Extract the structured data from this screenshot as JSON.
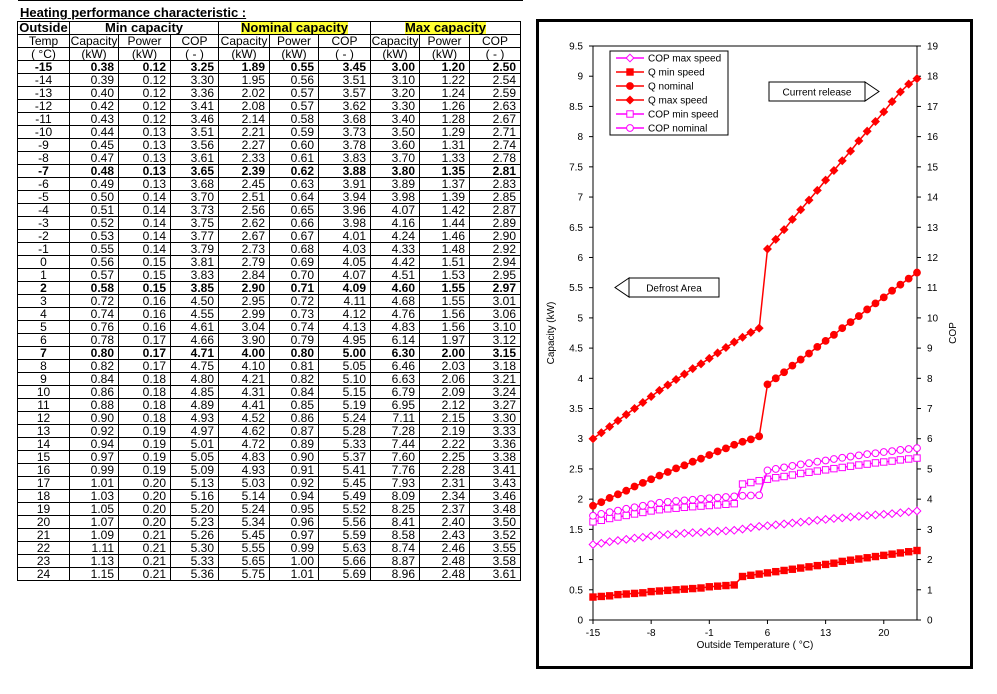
{
  "title": "Heating performance characteristic :",
  "table": {
    "groups": [
      "Outside",
      "Min capacity",
      "Nominal capacity",
      "Max capacity"
    ],
    "headers": [
      "Temp",
      "Capacity",
      "Power",
      "COP",
      "Capacity",
      "Power",
      "COP",
      "Capacity",
      "Power",
      "COP"
    ],
    "units": [
      "( °C)",
      "(kW)",
      "(kW)",
      "( - )",
      "(kW)",
      "(kW)",
      "( - )",
      "(kW)",
      "(kW)",
      "( - )"
    ],
    "bold_temps": [
      "-15",
      "-7",
      "2",
      "7"
    ],
    "rows": [
      [
        "-15",
        "0.38",
        "0.12",
        "3.25",
        "1.89",
        "0.55",
        "3.45",
        "3.00",
        "1.20",
        "2.50"
      ],
      [
        "-14",
        "0.39",
        "0.12",
        "3.30",
        "1.95",
        "0.56",
        "3.51",
        "3.10",
        "1.22",
        "2.54"
      ],
      [
        "-13",
        "0.40",
        "0.12",
        "3.36",
        "2.02",
        "0.57",
        "3.57",
        "3.20",
        "1.24",
        "2.59"
      ],
      [
        "-12",
        "0.42",
        "0.12",
        "3.41",
        "2.08",
        "0.57",
        "3.62",
        "3.30",
        "1.26",
        "2.63"
      ],
      [
        "-11",
        "0.43",
        "0.12",
        "3.46",
        "2.14",
        "0.58",
        "3.68",
        "3.40",
        "1.28",
        "2.67"
      ],
      [
        "-10",
        "0.44",
        "0.13",
        "3.51",
        "2.21",
        "0.59",
        "3.73",
        "3.50",
        "1.29",
        "2.71"
      ],
      [
        "-9",
        "0.45",
        "0.13",
        "3.56",
        "2.27",
        "0.60",
        "3.78",
        "3.60",
        "1.31",
        "2.74"
      ],
      [
        "-8",
        "0.47",
        "0.13",
        "3.61",
        "2.33",
        "0.61",
        "3.83",
        "3.70",
        "1.33",
        "2.78"
      ],
      [
        "-7",
        "0.48",
        "0.13",
        "3.65",
        "2.39",
        "0.62",
        "3.88",
        "3.80",
        "1.35",
        "2.81"
      ],
      [
        "-6",
        "0.49",
        "0.13",
        "3.68",
        "2.45",
        "0.63",
        "3.91",
        "3.89",
        "1.37",
        "2.83"
      ],
      [
        "-5",
        "0.50",
        "0.14",
        "3.70",
        "2.51",
        "0.64",
        "3.94",
        "3.98",
        "1.39",
        "2.85"
      ],
      [
        "-4",
        "0.51",
        "0.14",
        "3.73",
        "2.56",
        "0.65",
        "3.96",
        "4.07",
        "1.42",
        "2.87"
      ],
      [
        "-3",
        "0.52",
        "0.14",
        "3.75",
        "2.62",
        "0.66",
        "3.98",
        "4.16",
        "1.44",
        "2.89"
      ],
      [
        "-2",
        "0.53",
        "0.14",
        "3.77",
        "2.67",
        "0.67",
        "4.01",
        "4.24",
        "1.46",
        "2.90"
      ],
      [
        "-1",
        "0.55",
        "0.14",
        "3.79",
        "2.73",
        "0.68",
        "4.03",
        "4.33",
        "1.48",
        "2.92"
      ],
      [
        "0",
        "0.56",
        "0.15",
        "3.81",
        "2.79",
        "0.69",
        "4.05",
        "4.42",
        "1.51",
        "2.94"
      ],
      [
        "1",
        "0.57",
        "0.15",
        "3.83",
        "2.84",
        "0.70",
        "4.07",
        "4.51",
        "1.53",
        "2.95"
      ],
      [
        "2",
        "0.58",
        "0.15",
        "3.85",
        "2.90",
        "0.71",
        "4.09",
        "4.60",
        "1.55",
        "2.97"
      ],
      [
        "3",
        "0.72",
        "0.16",
        "4.50",
        "2.95",
        "0.72",
        "4.11",
        "4.68",
        "1.55",
        "3.01"
      ],
      [
        "4",
        "0.74",
        "0.16",
        "4.55",
        "2.99",
        "0.73",
        "4.12",
        "4.76",
        "1.56",
        "3.06"
      ],
      [
        "5",
        "0.76",
        "0.16",
        "4.61",
        "3.04",
        "0.74",
        "4.13",
        "4.83",
        "1.56",
        "3.10"
      ],
      [
        "6",
        "0.78",
        "0.17",
        "4.66",
        "3.90",
        "0.79",
        "4.95",
        "6.14",
        "1.97",
        "3.12"
      ],
      [
        "7",
        "0.80",
        "0.17",
        "4.71",
        "4.00",
        "0.80",
        "5.00",
        "6.30",
        "2.00",
        "3.15"
      ],
      [
        "8",
        "0.82",
        "0.17",
        "4.75",
        "4.10",
        "0.81",
        "5.05",
        "6.46",
        "2.03",
        "3.18"
      ],
      [
        "9",
        "0.84",
        "0.18",
        "4.80",
        "4.21",
        "0.82",
        "5.10",
        "6.63",
        "2.06",
        "3.21"
      ],
      [
        "10",
        "0.86",
        "0.18",
        "4.85",
        "4.31",
        "0.84",
        "5.15",
        "6.79",
        "2.09",
        "3.24"
      ],
      [
        "11",
        "0.88",
        "0.18",
        "4.89",
        "4.41",
        "0.85",
        "5.19",
        "6.95",
        "2.12",
        "3.27"
      ],
      [
        "12",
        "0.90",
        "0.18",
        "4.93",
        "4.52",
        "0.86",
        "5.24",
        "7.11",
        "2.15",
        "3.30"
      ],
      [
        "13",
        "0.92",
        "0.19",
        "4.97",
        "4.62",
        "0.87",
        "5.28",
        "7.28",
        "2.19",
        "3.33"
      ],
      [
        "14",
        "0.94",
        "0.19",
        "5.01",
        "4.72",
        "0.89",
        "5.33",
        "7.44",
        "2.22",
        "3.36"
      ],
      [
        "15",
        "0.97",
        "0.19",
        "5.05",
        "4.83",
        "0.90",
        "5.37",
        "7.60",
        "2.25",
        "3.38"
      ],
      [
        "16",
        "0.99",
        "0.19",
        "5.09",
        "4.93",
        "0.91",
        "5.41",
        "7.76",
        "2.28",
        "3.41"
      ],
      [
        "17",
        "1.01",
        "0.20",
        "5.13",
        "5.03",
        "0.92",
        "5.45",
        "7.93",
        "2.31",
        "3.43"
      ],
      [
        "18",
        "1.03",
        "0.20",
        "5.16",
        "5.14",
        "0.94",
        "5.49",
        "8.09",
        "2.34",
        "3.46"
      ],
      [
        "19",
        "1.05",
        "0.20",
        "5.20",
        "5.24",
        "0.95",
        "5.52",
        "8.25",
        "2.37",
        "3.48"
      ],
      [
        "20",
        "1.07",
        "0.20",
        "5.23",
        "5.34",
        "0.96",
        "5.56",
        "8.41",
        "2.40",
        "3.50"
      ],
      [
        "21",
        "1.09",
        "0.21",
        "5.26",
        "5.45",
        "0.97",
        "5.59",
        "8.58",
        "2.43",
        "3.52"
      ],
      [
        "22",
        "1.11",
        "0.21",
        "5.30",
        "5.55",
        "0.99",
        "5.63",
        "8.74",
        "2.46",
        "3.55"
      ],
      [
        "23",
        "1.13",
        "0.21",
        "5.33",
        "5.65",
        "1.00",
        "5.66",
        "8.87",
        "2.48",
        "3.58"
      ],
      [
        "24",
        "1.15",
        "0.21",
        "5.36",
        "5.75",
        "1.01",
        "5.69",
        "8.96",
        "2.48",
        "3.61"
      ]
    ]
  },
  "colors": {
    "q_series": "#ff0000",
    "cop_series": "#ff00ff",
    "highlight": "#ffff33"
  },
  "chart_data": {
    "type": "line",
    "x": [
      -15,
      -14,
      -13,
      -12,
      -11,
      -10,
      -9,
      -8,
      -7,
      -6,
      -5,
      -4,
      -3,
      -2,
      -1,
      0,
      1,
      2,
      3,
      4,
      5,
      6,
      7,
      8,
      9,
      10,
      11,
      12,
      13,
      14,
      15,
      16,
      17,
      18,
      19,
      20,
      21,
      22,
      23,
      24
    ],
    "xlabel": "Outside Temperature ( °C)",
    "ylabel": "Capacity (kW)",
    "y2label": "COP",
    "xlim": [
      -15,
      24
    ],
    "ylim": [
      0,
      9.5
    ],
    "y2lim": [
      0,
      19
    ],
    "xticks": [
      -15,
      -8,
      -1,
      6,
      13,
      20
    ],
    "yticks": [
      0.0,
      0.5,
      1.0,
      1.5,
      2.0,
      2.5,
      3.0,
      3.5,
      4.0,
      4.5,
      5.0,
      5.5,
      6.0,
      6.5,
      7.0,
      7.5,
      8.0,
      8.5,
      9.0,
      9.5
    ],
    "y2ticks": [
      0,
      1,
      2,
      3,
      4,
      5,
      6,
      7,
      8,
      9,
      10,
      11,
      12,
      13,
      14,
      15,
      16,
      17,
      18,
      19
    ],
    "grid": false,
    "legend_position": "top-left",
    "series": [
      {
        "name": "COP max speed",
        "axis": "y2",
        "marker": "diamond-open",
        "color": "#ff00ff",
        "values": [
          2.5,
          2.54,
          2.59,
          2.63,
          2.67,
          2.71,
          2.74,
          2.78,
          2.81,
          2.83,
          2.85,
          2.87,
          2.89,
          2.9,
          2.92,
          2.94,
          2.95,
          2.97,
          3.01,
          3.06,
          3.1,
          3.12,
          3.15,
          3.18,
          3.21,
          3.24,
          3.27,
          3.3,
          3.33,
          3.36,
          3.38,
          3.41,
          3.43,
          3.46,
          3.48,
          3.5,
          3.52,
          3.55,
          3.58,
          3.61
        ]
      },
      {
        "name": "Q min speed",
        "axis": "y",
        "marker": "square-filled",
        "color": "#ff0000",
        "values": [
          0.38,
          0.39,
          0.4,
          0.42,
          0.43,
          0.44,
          0.45,
          0.47,
          0.48,
          0.49,
          0.5,
          0.51,
          0.52,
          0.53,
          0.55,
          0.56,
          0.57,
          0.58,
          0.72,
          0.74,
          0.76,
          0.78,
          0.8,
          0.82,
          0.84,
          0.86,
          0.88,
          0.9,
          0.92,
          0.94,
          0.97,
          0.99,
          1.01,
          1.03,
          1.05,
          1.07,
          1.09,
          1.11,
          1.13,
          1.15
        ]
      },
      {
        "name": "Q nominal",
        "axis": "y",
        "marker": "circle-filled",
        "color": "#ff0000",
        "values": [
          1.89,
          1.95,
          2.02,
          2.08,
          2.14,
          2.21,
          2.27,
          2.33,
          2.39,
          2.45,
          2.51,
          2.56,
          2.62,
          2.67,
          2.73,
          2.79,
          2.84,
          2.9,
          2.95,
          2.99,
          3.04,
          3.9,
          4.0,
          4.1,
          4.21,
          4.31,
          4.41,
          4.52,
          4.62,
          4.72,
          4.83,
          4.93,
          5.03,
          5.14,
          5.24,
          5.34,
          5.45,
          5.55,
          5.65,
          5.75
        ]
      },
      {
        "name": "Q max speed",
        "axis": "y",
        "marker": "diamond-filled",
        "color": "#ff0000",
        "values": [
          3.0,
          3.1,
          3.2,
          3.3,
          3.4,
          3.5,
          3.6,
          3.7,
          3.8,
          3.89,
          3.98,
          4.07,
          4.16,
          4.24,
          4.33,
          4.42,
          4.51,
          4.6,
          4.68,
          4.76,
          4.83,
          6.14,
          6.3,
          6.46,
          6.63,
          6.79,
          6.95,
          7.11,
          7.28,
          7.44,
          7.6,
          7.76,
          7.93,
          8.09,
          8.25,
          8.41,
          8.58,
          8.74,
          8.87,
          8.96
        ]
      },
      {
        "name": "COP min speed",
        "axis": "y2",
        "marker": "square-open",
        "color": "#ff00ff",
        "values": [
          3.25,
          3.3,
          3.36,
          3.41,
          3.46,
          3.51,
          3.56,
          3.61,
          3.65,
          3.68,
          3.7,
          3.73,
          3.75,
          3.77,
          3.79,
          3.81,
          3.83,
          3.85,
          4.5,
          4.55,
          4.61,
          4.66,
          4.71,
          4.75,
          4.8,
          4.85,
          4.89,
          4.93,
          4.97,
          5.01,
          5.05,
          5.09,
          5.13,
          5.16,
          5.2,
          5.23,
          5.26,
          5.3,
          5.33,
          5.36
        ]
      },
      {
        "name": "COP nominal",
        "axis": "y2",
        "marker": "circle-open",
        "color": "#ff00ff",
        "values": [
          3.45,
          3.51,
          3.57,
          3.62,
          3.68,
          3.73,
          3.78,
          3.83,
          3.88,
          3.91,
          3.94,
          3.96,
          3.98,
          4.01,
          4.03,
          4.05,
          4.07,
          4.09,
          4.11,
          4.12,
          4.13,
          4.95,
          5.0,
          5.05,
          5.1,
          5.15,
          5.19,
          5.24,
          5.28,
          5.33,
          5.37,
          5.41,
          5.45,
          5.49,
          5.52,
          5.56,
          5.59,
          5.63,
          5.66,
          5.69
        ]
      }
    ],
    "annotations": [
      {
        "text": "Current release",
        "arrow": "right"
      },
      {
        "text": "Defrost Area",
        "arrow": "left"
      }
    ]
  }
}
